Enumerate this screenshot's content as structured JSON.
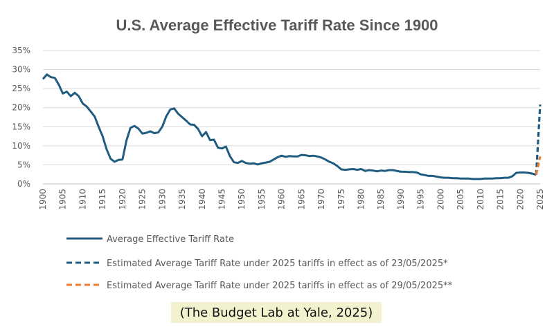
{
  "chart_data": {
    "type": "line",
    "title": "U.S. Average Effective Tariff Rate Since 1900",
    "xlabel": "",
    "ylabel": "",
    "xlim": [
      1900,
      2025
    ],
    "ylim": [
      0,
      35
    ],
    "y_ticks": [
      "0%",
      "5%",
      "10%",
      "15%",
      "20%",
      "25%",
      "30%",
      "35%"
    ],
    "x_ticks": [
      "1900",
      "1905",
      "1910",
      "1915",
      "1920",
      "1925",
      "1930",
      "1935",
      "1940",
      "1945",
      "1950",
      "1955",
      "1960",
      "1965",
      "1970",
      "1975",
      "1980",
      "1985",
      "1990",
      "1995",
      "2000",
      "2005",
      "2010",
      "2015",
      "2020",
      "2025"
    ],
    "grid": true,
    "legend_position": "bottom",
    "series": [
      {
        "name": "Average Effective Tariff Rate",
        "color": "#1f5c80",
        "style": "solid",
        "x": [
          1900,
          1901,
          1902,
          1903,
          1904,
          1905,
          1906,
          1907,
          1908,
          1909,
          1910,
          1911,
          1912,
          1913,
          1914,
          1915,
          1916,
          1917,
          1918,
          1919,
          1920,
          1921,
          1922,
          1923,
          1924,
          1925,
          1926,
          1927,
          1928,
          1929,
          1930,
          1931,
          1932,
          1933,
          1934,
          1935,
          1936,
          1937,
          1938,
          1939,
          1940,
          1941,
          1942,
          1943,
          1944,
          1945,
          1946,
          1947,
          1948,
          1949,
          1950,
          1951,
          1952,
          1953,
          1954,
          1955,
          1956,
          1957,
          1958,
          1959,
          1960,
          1961,
          1962,
          1963,
          1964,
          1965,
          1966,
          1967,
          1968,
          1969,
          1970,
          1971,
          1972,
          1973,
          1974,
          1975,
          1976,
          1977,
          1978,
          1979,
          1980,
          1981,
          1982,
          1983,
          1984,
          1985,
          1986,
          1987,
          1988,
          1989,
          1990,
          1991,
          1992,
          1993,
          1994,
          1995,
          1996,
          1997,
          1998,
          1999,
          2000,
          2001,
          2002,
          2003,
          2004,
          2005,
          2006,
          2007,
          2008,
          2009,
          2010,
          2011,
          2012,
          2013,
          2014,
          2015,
          2016,
          2017,
          2018,
          2019,
          2020,
          2021,
          2022,
          2023,
          2024
        ],
        "values": [
          27.5,
          28.7,
          28.0,
          27.8,
          26.0,
          23.7,
          24.2,
          23.0,
          23.9,
          23.0,
          21.1,
          20.3,
          19.0,
          17.7,
          15.0,
          12.5,
          9.1,
          6.6,
          5.8,
          6.3,
          6.4,
          11.4,
          14.7,
          15.2,
          14.5,
          13.2,
          13.4,
          13.8,
          13.3,
          13.5,
          15.0,
          17.7,
          19.5,
          19.8,
          18.4,
          17.5,
          16.6,
          15.6,
          15.5,
          14.4,
          12.5,
          13.6,
          11.5,
          11.6,
          9.5,
          9.3,
          9.8,
          7.3,
          5.7,
          5.5,
          6.0,
          5.5,
          5.3,
          5.4,
          5.1,
          5.4,
          5.6,
          5.8,
          6.4,
          7.0,
          7.4,
          7.1,
          7.3,
          7.2,
          7.2,
          7.6,
          7.5,
          7.3,
          7.4,
          7.2,
          6.9,
          6.4,
          5.8,
          5.4,
          4.7,
          3.8,
          3.7,
          3.8,
          3.9,
          3.7,
          3.9,
          3.4,
          3.6,
          3.5,
          3.3,
          3.5,
          3.4,
          3.6,
          3.6,
          3.4,
          3.2,
          3.2,
          3.1,
          3.1,
          3.0,
          2.5,
          2.3,
          2.1,
          2.1,
          1.9,
          1.7,
          1.6,
          1.6,
          1.5,
          1.5,
          1.4,
          1.4,
          1.4,
          1.3,
          1.3,
          1.3,
          1.4,
          1.4,
          1.4,
          1.5,
          1.5,
          1.6,
          1.6,
          2.0,
          2.9,
          3.0,
          3.0,
          2.9,
          2.7,
          2.4
        ]
      },
      {
        "name": "Estimated Average Tariff Rate under 2025 tariffs in effect as of 23/05/2025*",
        "color": "#1f5c80",
        "style": "dashed",
        "x": [
          2024,
          2025
        ],
        "values": [
          2.4,
          20.8
        ]
      },
      {
        "name": "Estimated Average Tariff Rate under 2025 tariffs in effect as of 29/05/2025**",
        "color": "#ed7d31",
        "style": "dashed",
        "x": [
          2024,
          2025
        ],
        "values": [
          2.4,
          7.2
        ]
      }
    ]
  },
  "source_caption": "(The Budget Lab at Yale, 2025)"
}
